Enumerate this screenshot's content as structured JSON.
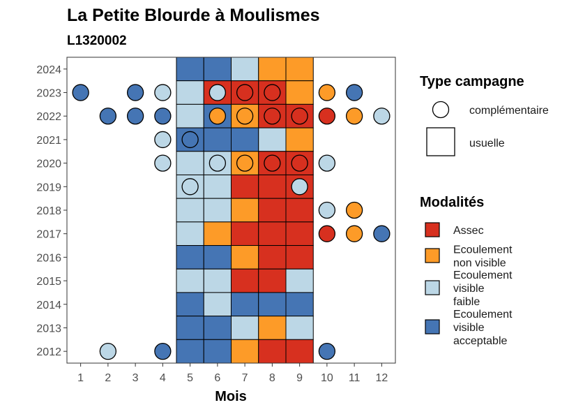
{
  "chart_data": {
    "type": "heatmap",
    "title": "La Petite Blourde à Moulismes",
    "subtitle": "L1320002",
    "xlabel": "Mois",
    "ylabel": "",
    "x_ticks": [
      "1",
      "2",
      "3",
      "4",
      "5",
      "6",
      "7",
      "8",
      "9",
      "10",
      "11",
      "12"
    ],
    "y_ticks": [
      "2024",
      "2023",
      "2022",
      "2021",
      "2020",
      "2019",
      "2018",
      "2017",
      "2016",
      "2015",
      "2014",
      "2013",
      "2012"
    ],
    "xlim": [
      0.5,
      12.5
    ],
    "ylim": [
      2011.5,
      2024.5
    ],
    "grid": false,
    "legend_placement": "right",
    "legend_type": {
      "title": "Type campagne",
      "entries": [
        {
          "key": "complementaire",
          "label": "complémentaire",
          "shape": "circle"
        },
        {
          "key": "usuelle",
          "label": "usuelle",
          "shape": "square"
        }
      ]
    },
    "legend_modalites": {
      "title": "Modalités",
      "entries": [
        {
          "key": "assec",
          "lines": [
            "Assec"
          ],
          "color": "#d7301f"
        },
        {
          "key": "nonvisible",
          "lines": [
            "Ecoulement",
            "non visible"
          ],
          "color": "#fd9b28"
        },
        {
          "key": "faible",
          "lines": [
            "Ecoulement",
            "visible",
            "faible"
          ],
          "color": "#bcd7e6"
        },
        {
          "key": "acceptable",
          "lines": [
            "Ecoulement",
            "visible",
            "acceptable"
          ],
          "color": "#4575b4"
        }
      ]
    },
    "colors": {
      "assec": "#d7301f",
      "nonvisible": "#fd9b28",
      "faible": "#bcd7e6",
      "acceptable": "#4575b4"
    },
    "usuelle": [
      {
        "year": 2024,
        "months": [
          "acceptable",
          "acceptable",
          "faible",
          "nonvisible",
          "nonvisible"
        ]
      },
      {
        "year": 2023,
        "months": [
          "faible",
          "assec",
          "assec",
          "assec",
          "nonvisible"
        ]
      },
      {
        "year": 2022,
        "months": [
          "faible",
          "acceptable",
          "nonvisible",
          "assec",
          "assec"
        ]
      },
      {
        "year": 2021,
        "months": [
          "acceptable",
          "acceptable",
          "acceptable",
          "faible",
          "nonvisible"
        ]
      },
      {
        "year": 2020,
        "months": [
          "faible",
          "faible",
          "nonvisible",
          "assec",
          "assec"
        ]
      },
      {
        "year": 2019,
        "months": [
          "faible",
          "faible",
          "assec",
          "assec",
          "assec"
        ]
      },
      {
        "year": 2018,
        "months": [
          "faible",
          "faible",
          "nonvisible",
          "assec",
          "assec"
        ]
      },
      {
        "year": 2017,
        "months": [
          "faible",
          "nonvisible",
          "assec",
          "assec",
          "assec"
        ]
      },
      {
        "year": 2016,
        "months": [
          "acceptable",
          "acceptable",
          "nonvisible",
          "assec",
          "assec"
        ]
      },
      {
        "year": 2015,
        "months": [
          "faible",
          "faible",
          "assec",
          "assec",
          "faible"
        ]
      },
      {
        "year": 2014,
        "months": [
          "acceptable",
          "faible",
          "acceptable",
          "acceptable",
          "acceptable"
        ]
      },
      {
        "year": 2013,
        "months": [
          "acceptable",
          "acceptable",
          "faible",
          "nonvisible",
          "faible"
        ]
      },
      {
        "year": 2012,
        "months": [
          "acceptable",
          "acceptable",
          "nonvisible",
          "assec",
          "assec"
        ]
      }
    ],
    "usuelle_first_month": 5,
    "complementaire": [
      {
        "year": 2023,
        "month": 1,
        "m": "acceptable"
      },
      {
        "year": 2023,
        "month": 3,
        "m": "acceptable"
      },
      {
        "year": 2023,
        "month": 4,
        "m": "faible"
      },
      {
        "year": 2023,
        "month": 6,
        "m": "faible"
      },
      {
        "year": 2023,
        "month": 7,
        "m": "assec"
      },
      {
        "year": 2023,
        "month": 8,
        "m": "assec"
      },
      {
        "year": 2023,
        "month": 10,
        "m": "nonvisible"
      },
      {
        "year": 2023,
        "month": 11,
        "m": "acceptable"
      },
      {
        "year": 2022,
        "month": 2,
        "m": "acceptable"
      },
      {
        "year": 2022,
        "month": 3,
        "m": "acceptable"
      },
      {
        "year": 2022,
        "month": 4,
        "m": "acceptable"
      },
      {
        "year": 2022,
        "month": 6,
        "m": "nonvisible"
      },
      {
        "year": 2022,
        "month": 7,
        "m": "nonvisible"
      },
      {
        "year": 2022,
        "month": 8,
        "m": "assec"
      },
      {
        "year": 2022,
        "month": 9,
        "m": "assec"
      },
      {
        "year": 2022,
        "month": 10,
        "m": "assec"
      },
      {
        "year": 2022,
        "month": 11,
        "m": "nonvisible"
      },
      {
        "year": 2022,
        "month": 12,
        "m": "faible"
      },
      {
        "year": 2021,
        "month": 4,
        "m": "faible"
      },
      {
        "year": 2021,
        "month": 5,
        "m": "acceptable"
      },
      {
        "year": 2020,
        "month": 4,
        "m": "faible"
      },
      {
        "year": 2020,
        "month": 6,
        "m": "faible"
      },
      {
        "year": 2020,
        "month": 7,
        "m": "nonvisible"
      },
      {
        "year": 2020,
        "month": 8,
        "m": "assec"
      },
      {
        "year": 2020,
        "month": 9,
        "m": "assec"
      },
      {
        "year": 2020,
        "month": 10,
        "m": "faible"
      },
      {
        "year": 2019,
        "month": 5,
        "m": "faible"
      },
      {
        "year": 2019,
        "month": 9,
        "m": "faible"
      },
      {
        "year": 2018,
        "month": 10,
        "m": "faible"
      },
      {
        "year": 2018,
        "month": 11,
        "m": "nonvisible"
      },
      {
        "year": 2017,
        "month": 10,
        "m": "assec"
      },
      {
        "year": 2017,
        "month": 11,
        "m": "nonvisible"
      },
      {
        "year": 2017,
        "month": 12,
        "m": "acceptable"
      },
      {
        "year": 2012,
        "month": 2,
        "m": "faible"
      },
      {
        "year": 2012,
        "month": 4,
        "m": "acceptable"
      },
      {
        "year": 2012,
        "month": 10,
        "m": "acceptable"
      }
    ]
  }
}
